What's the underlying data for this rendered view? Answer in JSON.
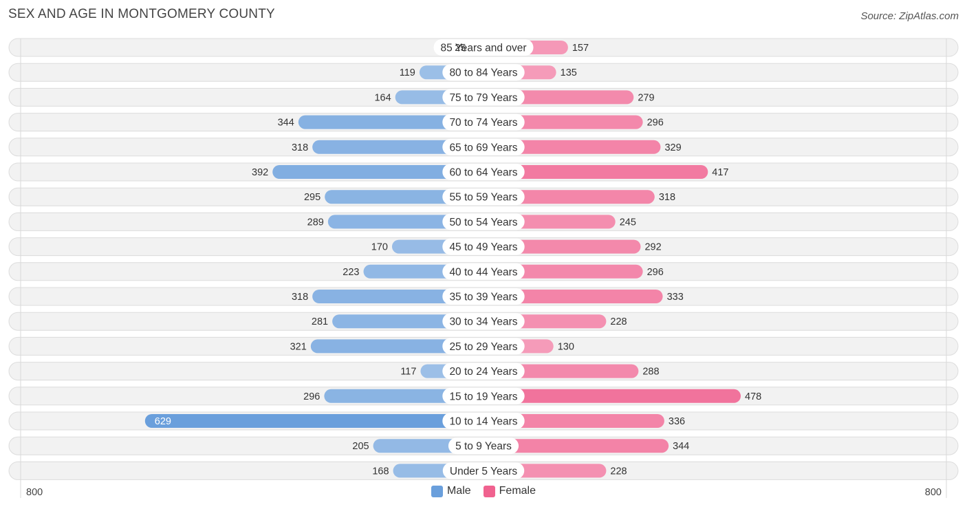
{
  "title": "SEX AND AGE IN MONTGOMERY COUNTY",
  "source": "Source: ZipAtlas.com",
  "colors": {
    "male": "#6a9fdc",
    "male_light": "#a7c6ea",
    "female": "#f0628f",
    "female_light": "#f6aac4"
  },
  "legend": {
    "male_label": "Male",
    "female_label": "Female"
  },
  "axis": {
    "left_label": "800",
    "right_label": "800"
  },
  "chart_data": {
    "type": "bar",
    "orientation": "horizontal-diverging",
    "title": "SEX AND AGE IN MONTGOMERY COUNTY",
    "xlim": [
      -800,
      800
    ],
    "categories": [
      "85 Years and over",
      "80 to 84 Years",
      "75 to 79 Years",
      "70 to 74 Years",
      "65 to 69 Years",
      "60 to 64 Years",
      "55 to 59 Years",
      "50 to 54 Years",
      "45 to 49 Years",
      "40 to 44 Years",
      "35 to 39 Years",
      "30 to 34 Years",
      "25 to 29 Years",
      "20 to 24 Years",
      "15 to 19 Years",
      "10 to 14 Years",
      "5 to 9 Years",
      "Under 5 Years"
    ],
    "series": [
      {
        "name": "Male",
        "values": [
          25,
          119,
          164,
          344,
          318,
          392,
          295,
          289,
          170,
          223,
          318,
          281,
          321,
          117,
          296,
          629,
          205,
          168
        ]
      },
      {
        "name": "Female",
        "values": [
          157,
          135,
          279,
          296,
          329,
          417,
          318,
          245,
          292,
          296,
          333,
          228,
          130,
          288,
          478,
          336,
          344,
          228
        ]
      }
    ]
  }
}
